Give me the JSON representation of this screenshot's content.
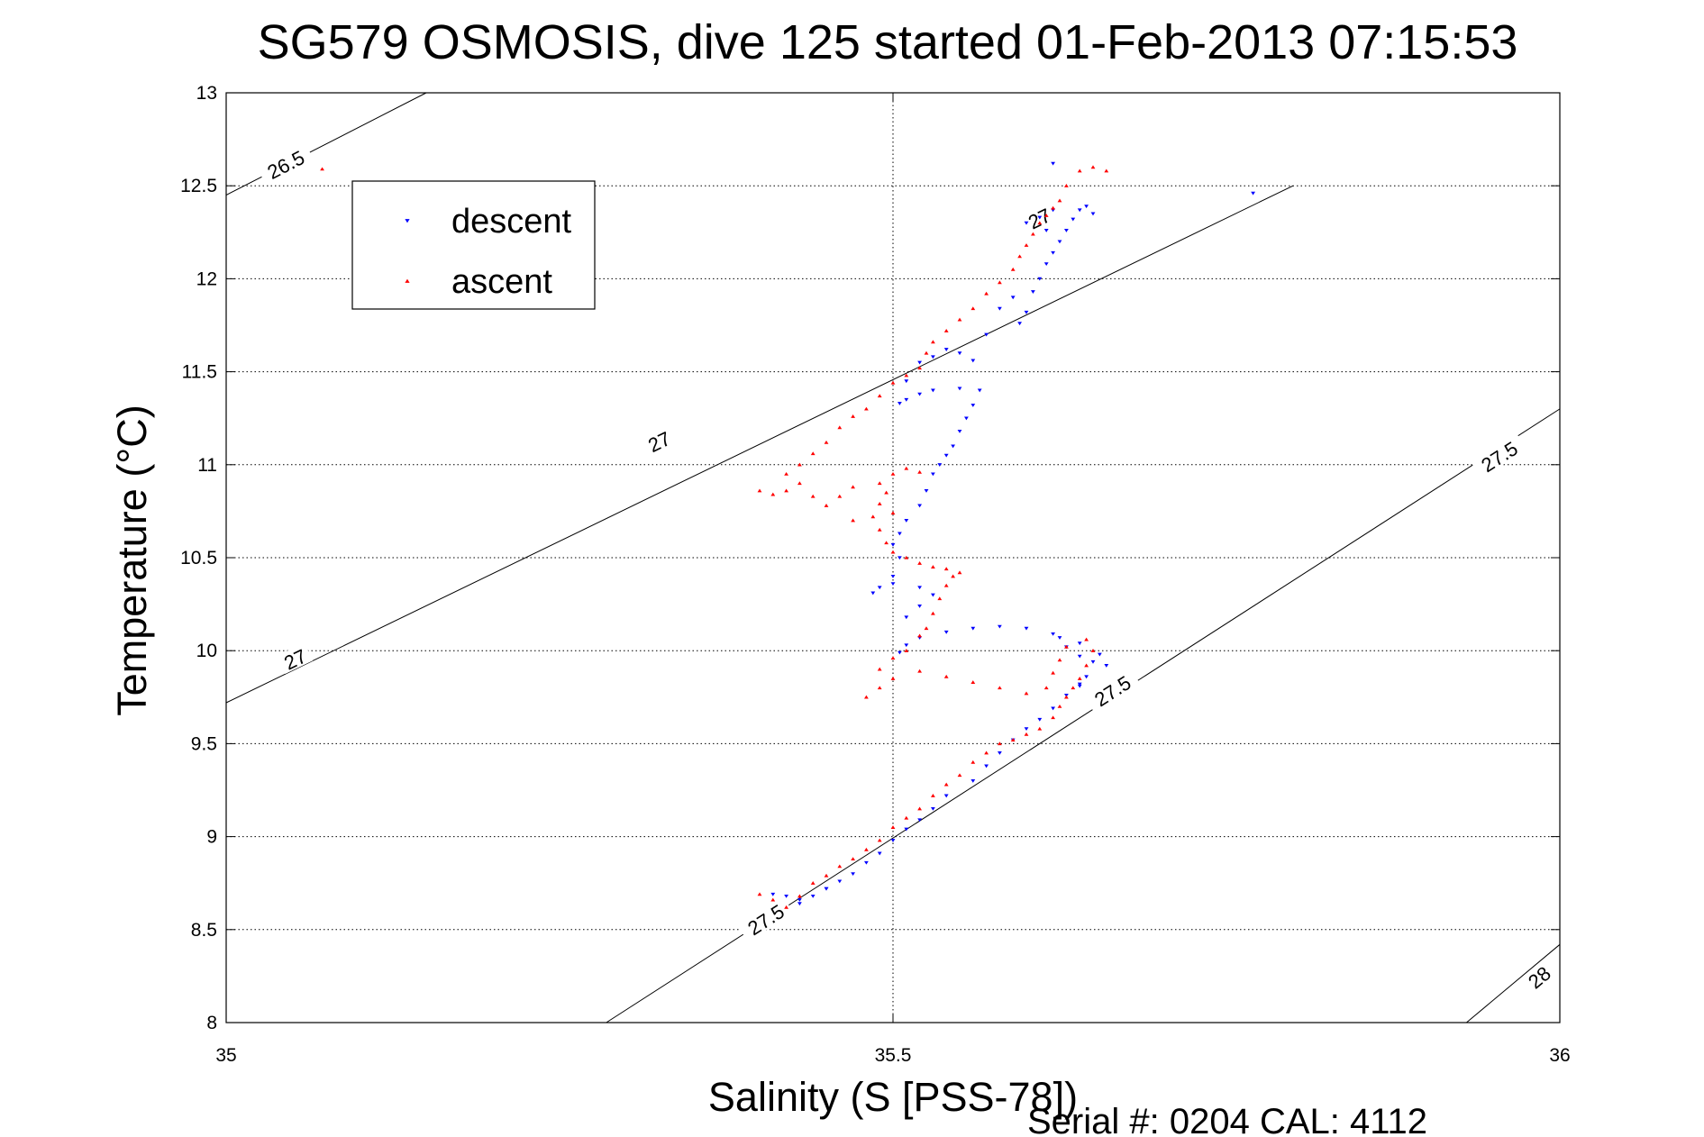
{
  "chart_data": {
    "type": "scatter",
    "title": "SG579 OSMOSIS, dive 125 started 01-Feb-2013 07:15:53",
    "xlabel": "Salinity (S [PSS-78])",
    "ylabel": "Temperature (°C)",
    "xlim": [
      35,
      36
    ],
    "ylim": [
      8,
      13
    ],
    "x_ticks": [
      "35",
      "35.5",
      "36"
    ],
    "y_ticks": [
      "8",
      "8.5",
      "9",
      "9.5",
      "10",
      "10.5",
      "11",
      "11.5",
      "12",
      "12.5",
      "13"
    ],
    "grid": true,
    "legend_position": "top-left",
    "footer_text": "Serial #: 0204  CAL: 4112",
    "contours": [
      {
        "label": "26.5",
        "points": [
          [
            35.0,
            12.45
          ],
          [
            35.15,
            13.0
          ]
        ],
        "label_at": [
          [
            35.045,
            12.61
          ]
        ]
      },
      {
        "label": "27",
        "points": [
          [
            35.0,
            9.72
          ],
          [
            35.8,
            12.5
          ],
          [
            35.78,
            12.44
          ],
          [
            35.78,
            12.44
          ],
          [
            35.78,
            12.44
          ],
          [
            35.78,
            12.44
          ],
          [
            35.78,
            12.44
          ],
          [
            35.78,
            12.44
          ],
          [
            35.78,
            12.44
          ],
          [
            35.78,
            12.44
          ],
          [
            35.78,
            12.44
          ],
          [
            35.78,
            12.44
          ],
          [
            35.78,
            12.44
          ],
          [
            35.78,
            12.44
          ]
        ],
        "label_at": [
          [
            35.052,
            9.95
          ],
          [
            35.325,
            11.12
          ],
          [
            35.61,
            12.32
          ]
        ]
      },
      {
        "label": "27.5",
        "points": [
          [
            35.285,
            8.0
          ],
          [
            36.0,
            11.3
          ]
        ],
        "label_at": [
          [
            35.405,
            8.55
          ],
          [
            35.665,
            9.78
          ],
          [
            35.955,
            11.04
          ]
        ]
      },
      {
        "label": "28",
        "points": [
          [
            35.93,
            8.0
          ],
          [
            36.0,
            8.42
          ]
        ],
        "label_at": [
          [
            35.985,
            8.24
          ]
        ]
      }
    ],
    "series": [
      {
        "name": "descent",
        "color": "#0000ff",
        "marker": "triangle-down",
        "points": [
          [
            35.41,
            8.69
          ],
          [
            35.42,
            8.68
          ],
          [
            35.43,
            8.66
          ],
          [
            35.44,
            8.68
          ],
          [
            35.45,
            8.72
          ],
          [
            35.46,
            8.76
          ],
          [
            35.47,
            8.8
          ],
          [
            35.48,
            8.86
          ],
          [
            35.49,
            8.91
          ],
          [
            35.5,
            8.98
          ],
          [
            35.51,
            9.04
          ],
          [
            35.52,
            9.09
          ],
          [
            35.53,
            9.15
          ],
          [
            35.54,
            9.22
          ],
          [
            35.56,
            9.3
          ],
          [
            35.57,
            9.38
          ],
          [
            35.58,
            9.45
          ],
          [
            35.59,
            9.52
          ],
          [
            35.6,
            9.58
          ],
          [
            35.61,
            9.63
          ],
          [
            35.62,
            9.69
          ],
          [
            35.63,
            9.76
          ],
          [
            35.64,
            9.81
          ],
          [
            35.645,
            9.86
          ],
          [
            35.65,
            9.94
          ],
          [
            35.64,
            9.97
          ],
          [
            35.63,
            10.02
          ],
          [
            35.625,
            10.07
          ],
          [
            35.62,
            10.09
          ],
          [
            35.6,
            10.12
          ],
          [
            35.58,
            10.13
          ],
          [
            35.56,
            10.12
          ],
          [
            35.54,
            10.1
          ],
          [
            35.52,
            10.07
          ],
          [
            35.51,
            10.03
          ],
          [
            35.505,
            9.99
          ],
          [
            35.51,
            10.18
          ],
          [
            35.52,
            10.24
          ],
          [
            35.53,
            10.3
          ],
          [
            35.52,
            10.34
          ],
          [
            35.5,
            10.36
          ],
          [
            35.49,
            10.34
          ],
          [
            35.485,
            10.31
          ],
          [
            35.5,
            10.4
          ],
          [
            35.505,
            10.5
          ],
          [
            35.5,
            10.57
          ],
          [
            35.505,
            10.63
          ],
          [
            35.51,
            10.7
          ],
          [
            35.52,
            10.78
          ],
          [
            35.525,
            10.86
          ],
          [
            35.53,
            10.95
          ],
          [
            35.535,
            11.0
          ],
          [
            35.54,
            11.05
          ],
          [
            35.545,
            11.1
          ],
          [
            35.55,
            11.18
          ],
          [
            35.555,
            11.25
          ],
          [
            35.56,
            11.32
          ],
          [
            35.565,
            11.4
          ],
          [
            35.55,
            11.41
          ],
          [
            35.53,
            11.4
          ],
          [
            35.52,
            11.38
          ],
          [
            35.51,
            11.35
          ],
          [
            35.505,
            11.33
          ],
          [
            35.51,
            11.45
          ],
          [
            35.52,
            11.55
          ],
          [
            35.53,
            11.58
          ],
          [
            35.54,
            11.62
          ],
          [
            35.55,
            11.6
          ],
          [
            35.56,
            11.56
          ],
          [
            35.57,
            11.7
          ],
          [
            35.58,
            11.84
          ],
          [
            35.59,
            11.9
          ],
          [
            35.595,
            11.76
          ],
          [
            35.6,
            11.82
          ],
          [
            35.605,
            11.93
          ],
          [
            35.61,
            12.0
          ],
          [
            35.615,
            12.08
          ],
          [
            35.62,
            12.14
          ],
          [
            35.625,
            12.2
          ],
          [
            35.63,
            12.26
          ],
          [
            35.635,
            12.32
          ],
          [
            35.64,
            12.37
          ],
          [
            35.645,
            12.39
          ],
          [
            35.65,
            12.35
          ],
          [
            35.62,
            12.37
          ],
          [
            35.61,
            12.33
          ],
          [
            35.6,
            12.3
          ],
          [
            35.615,
            12.26
          ],
          [
            35.62,
            12.62
          ],
          [
            35.77,
            12.46
          ],
          [
            35.64,
            10.04
          ],
          [
            35.655,
            9.98
          ],
          [
            35.66,
            9.92
          ],
          [
            35.64,
            9.82
          ],
          [
            35.45,
            8.72
          ],
          [
            35.43,
            8.64
          ]
        ]
      },
      {
        "name": "ascent",
        "color": "#ff0000",
        "marker": "triangle-up",
        "points": [
          [
            35.072,
            12.59
          ],
          [
            35.4,
            8.69
          ],
          [
            35.41,
            8.66
          ],
          [
            35.42,
            8.62
          ],
          [
            35.43,
            8.68
          ],
          [
            35.44,
            8.75
          ],
          [
            35.45,
            8.79
          ],
          [
            35.46,
            8.84
          ],
          [
            35.47,
            8.88
          ],
          [
            35.48,
            8.93
          ],
          [
            35.49,
            8.98
          ],
          [
            35.5,
            9.05
          ],
          [
            35.51,
            9.1
          ],
          [
            35.52,
            9.15
          ],
          [
            35.53,
            9.22
          ],
          [
            35.54,
            9.28
          ],
          [
            35.55,
            9.33
          ],
          [
            35.56,
            9.4
          ],
          [
            35.57,
            9.45
          ],
          [
            35.58,
            9.5
          ],
          [
            35.59,
            9.52
          ],
          [
            35.6,
            9.55
          ],
          [
            35.61,
            9.58
          ],
          [
            35.62,
            9.64
          ],
          [
            35.625,
            9.7
          ],
          [
            35.63,
            9.75
          ],
          [
            35.635,
            9.8
          ],
          [
            35.64,
            9.85
          ],
          [
            35.645,
            9.92
          ],
          [
            35.65,
            10.0
          ],
          [
            35.645,
            10.06
          ],
          [
            35.63,
            10.02
          ],
          [
            35.625,
            9.95
          ],
          [
            35.62,
            9.88
          ],
          [
            35.615,
            9.8
          ],
          [
            35.6,
            9.77
          ],
          [
            35.58,
            9.8
          ],
          [
            35.56,
            9.83
          ],
          [
            35.54,
            9.86
          ],
          [
            35.52,
            9.89
          ],
          [
            35.5,
            9.85
          ],
          [
            35.49,
            9.8
          ],
          [
            35.48,
            9.75
          ],
          [
            35.49,
            9.9
          ],
          [
            35.5,
            9.96
          ],
          [
            35.51,
            10.0
          ],
          [
            35.52,
            10.08
          ],
          [
            35.525,
            10.12
          ],
          [
            35.53,
            10.2
          ],
          [
            35.535,
            10.28
          ],
          [
            35.54,
            10.35
          ],
          [
            35.545,
            10.4
          ],
          [
            35.55,
            10.42
          ],
          [
            35.54,
            10.44
          ],
          [
            35.53,
            10.45
          ],
          [
            35.52,
            10.47
          ],
          [
            35.51,
            10.5
          ],
          [
            35.5,
            10.53
          ],
          [
            35.495,
            10.58
          ],
          [
            35.49,
            10.65
          ],
          [
            35.485,
            10.72
          ],
          [
            35.49,
            10.79
          ],
          [
            35.495,
            10.85
          ],
          [
            35.49,
            10.9
          ],
          [
            35.47,
            10.88
          ],
          [
            35.46,
            10.83
          ],
          [
            35.45,
            10.78
          ],
          [
            35.44,
            10.83
          ],
          [
            35.43,
            10.9
          ],
          [
            35.42,
            10.86
          ],
          [
            35.41,
            10.84
          ],
          [
            35.4,
            10.86
          ],
          [
            35.42,
            10.95
          ],
          [
            35.43,
            11.0
          ],
          [
            35.44,
            11.06
          ],
          [
            35.45,
            11.12
          ],
          [
            35.46,
            11.2
          ],
          [
            35.47,
            11.26
          ],
          [
            35.48,
            11.3
          ],
          [
            35.49,
            11.37
          ],
          [
            35.5,
            11.44
          ],
          [
            35.51,
            11.48
          ],
          [
            35.52,
            11.52
          ],
          [
            35.525,
            11.6
          ],
          [
            35.53,
            11.66
          ],
          [
            35.54,
            11.72
          ],
          [
            35.55,
            11.78
          ],
          [
            35.56,
            11.84
          ],
          [
            35.57,
            11.92
          ],
          [
            35.58,
            11.98
          ],
          [
            35.59,
            12.05
          ],
          [
            35.595,
            12.12
          ],
          [
            35.6,
            12.18
          ],
          [
            35.605,
            12.24
          ],
          [
            35.61,
            12.3
          ],
          [
            35.615,
            12.34
          ],
          [
            35.62,
            12.38
          ],
          [
            35.625,
            12.42
          ],
          [
            35.63,
            12.5
          ],
          [
            35.64,
            12.58
          ],
          [
            35.65,
            12.6
          ],
          [
            35.66,
            12.58
          ],
          [
            35.5,
            10.95
          ],
          [
            35.51,
            10.98
          ],
          [
            35.52,
            10.96
          ],
          [
            35.5,
            10.74
          ],
          [
            35.47,
            10.7
          ]
        ]
      }
    ]
  }
}
